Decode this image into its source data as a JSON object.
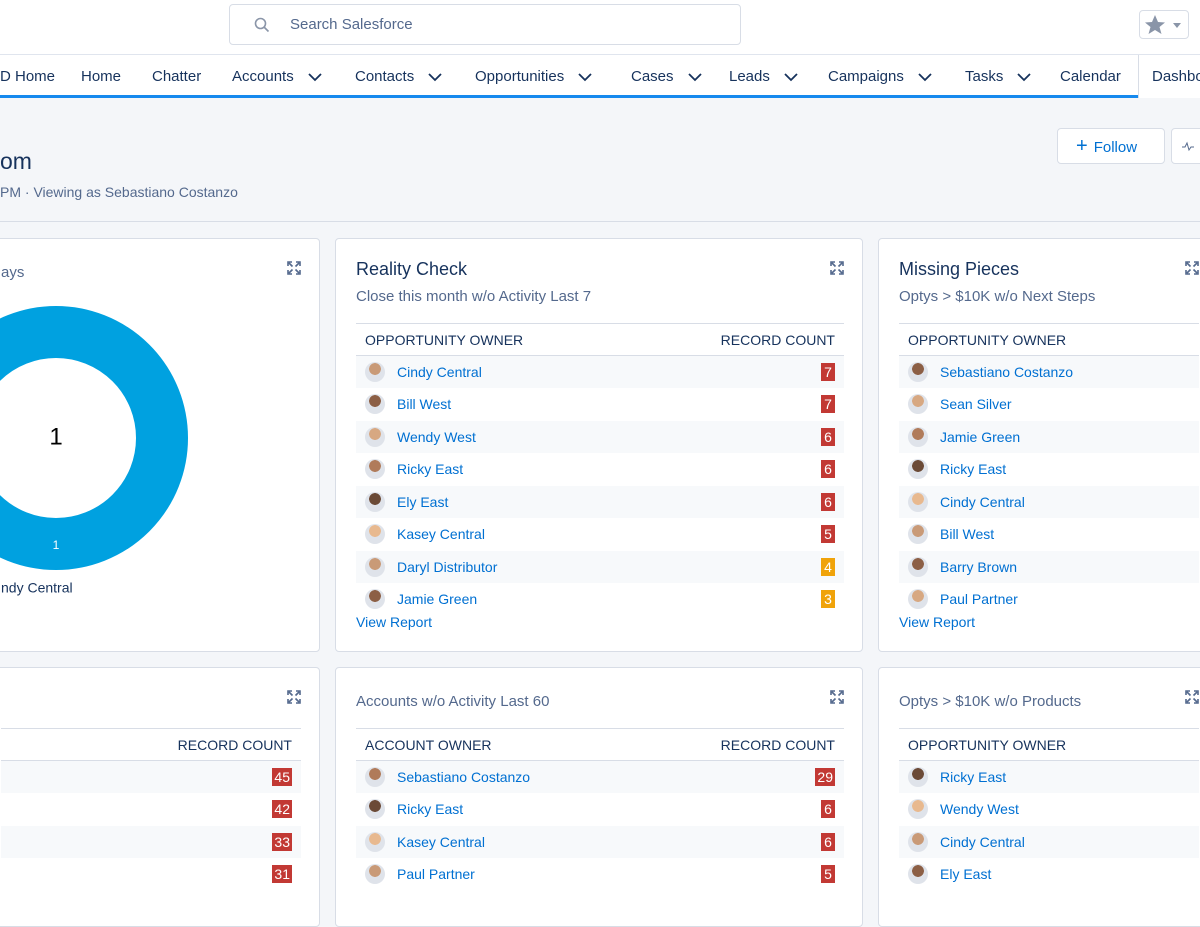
{
  "search": {
    "placeholder": "Search Salesforce"
  },
  "nav": [
    {
      "label": "D Home"
    },
    {
      "label": "Home"
    },
    {
      "label": "Chatter"
    },
    {
      "label": "Accounts",
      "menu": true
    },
    {
      "label": "Contacts",
      "menu": true
    },
    {
      "label": "Opportunities",
      "menu": true
    },
    {
      "label": "Cases",
      "menu": true
    },
    {
      "label": "Leads",
      "menu": true
    },
    {
      "label": "Campaigns",
      "menu": true
    },
    {
      "label": "Tasks",
      "menu": true
    },
    {
      "label": "Calendar"
    },
    {
      "label": "Dashbo",
      "active": true
    }
  ],
  "header": {
    "title": "om",
    "subtitle": "PM · Viewing as Sebastiano Costanzo",
    "follow": "Follow"
  },
  "cards": [
    {
      "subtitle": "ays",
      "donut": {
        "total": 1,
        "segments": [
          {
            "label": "ndy Central",
            "value": 1,
            "color": "#00a1e0"
          }
        ]
      }
    },
    {
      "title": "Reality Check",
      "subtitle": "Close this month w/o Activity Last 7",
      "headers": [
        "OPPORTUNITY OWNER",
        "RECORD COUNT"
      ],
      "rows": [
        {
          "owner": "Cindy Central",
          "count": 7,
          "color": "#c23934"
        },
        {
          "owner": "Bill West",
          "count": 7,
          "color": "#c23934"
        },
        {
          "owner": "Wendy West",
          "count": 6,
          "color": "#c23934"
        },
        {
          "owner": "Ricky East",
          "count": 6,
          "color": "#c23934"
        },
        {
          "owner": "Ely East",
          "count": 6,
          "color": "#c23934"
        },
        {
          "owner": "Kasey Central",
          "count": 5,
          "color": "#c23934"
        },
        {
          "owner": "Daryl Distributor",
          "count": 4,
          "color": "#f0a30a"
        },
        {
          "owner": "Jamie Green",
          "count": 3,
          "color": "#f0a30a"
        }
      ],
      "link": "View Report"
    },
    {
      "title": "Missing Pieces",
      "subtitle": "Optys > $10K w/o Next Steps",
      "headers": [
        "OPPORTUNITY OWNER"
      ],
      "rows": [
        {
          "owner": "Sebastiano Costanzo"
        },
        {
          "owner": "Sean Silver"
        },
        {
          "owner": "Jamie Green"
        },
        {
          "owner": "Ricky East"
        },
        {
          "owner": "Cindy Central"
        },
        {
          "owner": "Bill West"
        },
        {
          "owner": "Barry Brown"
        },
        {
          "owner": "Paul Partner"
        }
      ],
      "link": "View Report"
    },
    {
      "headers": [
        "RECORD COUNT"
      ],
      "rows": [
        {
          "count": 45,
          "color": "#c23934"
        },
        {
          "count": 42,
          "color": "#c23934"
        },
        {
          "count": 33,
          "color": "#c23934"
        },
        {
          "count": 31,
          "color": "#c23934"
        }
      ]
    },
    {
      "subtitle": "Accounts w/o Activity Last 60",
      "headers": [
        "ACCOUNT OWNER",
        "RECORD COUNT"
      ],
      "rows": [
        {
          "owner": "Sebastiano Costanzo",
          "count": 29,
          "color": "#c23934"
        },
        {
          "owner": "Ricky East",
          "count": 6,
          "color": "#c23934"
        },
        {
          "owner": "Kasey Central",
          "count": 6,
          "color": "#c23934"
        },
        {
          "owner": "Paul Partner",
          "count": 5,
          "color": "#c23934"
        }
      ]
    },
    {
      "subtitle": "Optys > $10K w/o Products",
      "headers": [
        "OPPORTUNITY OWNER"
      ],
      "rows": [
        {
          "owner": "Ricky East"
        },
        {
          "owner": "Wendy West"
        },
        {
          "owner": "Cindy Central"
        },
        {
          "owner": "Ely East"
        }
      ]
    }
  ]
}
